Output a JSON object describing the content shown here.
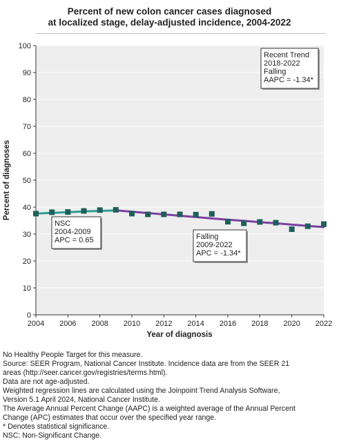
{
  "chart_data": {
    "type": "line",
    "title": "Percent of new colon cancer cases diagnosed at localized stage, delay-adjusted incidence, 2004-2022",
    "title_lines": [
      "Percent of new colon cancer cases diagnosed",
      "at localized stage, delay-adjusted incidence, 2004-2022"
    ],
    "xlabel": "Year of diagnosis",
    "ylabel": "Percent of diagnoses",
    "xlim": [
      2004,
      2022
    ],
    "ylim": [
      0,
      100
    ],
    "x_ticks": [
      2004,
      2006,
      2008,
      2010,
      2012,
      2014,
      2016,
      2018,
      2020,
      2022
    ],
    "y_ticks": [
      0,
      10,
      20,
      30,
      40,
      50,
      60,
      70,
      80,
      90,
      100
    ],
    "grid": true,
    "series": [
      {
        "kind": "observed",
        "marker": "square",
        "color": "#1f5f5b",
        "x": [
          2004,
          2005,
          2006,
          2007,
          2008,
          2009,
          2010,
          2011,
          2012,
          2013,
          2014,
          2015,
          2016,
          2017,
          2018,
          2019,
          2020,
          2021,
          2022
        ],
        "values": [
          37.6,
          38.1,
          38.2,
          38.6,
          38.9,
          39.0,
          37.6,
          37.3,
          37.3,
          37.3,
          37.2,
          37.5,
          34.6,
          34.0,
          34.5,
          34.2,
          31.8,
          32.9,
          33.7
        ]
      },
      {
        "kind": "trend",
        "segment": "2004-2009",
        "color": "#2a9d8f",
        "x": [
          2004,
          2005,
          2006,
          2007,
          2008,
          2009
        ],
        "values": [
          37.6,
          37.9,
          38.1,
          38.4,
          38.6,
          38.8
        ]
      },
      {
        "kind": "trend",
        "segment": "2009-2022",
        "color": "#7b3fa0",
        "x": [
          2009,
          2010,
          2011,
          2012,
          2013,
          2014,
          2015,
          2016,
          2017,
          2018,
          2019,
          2020,
          2021,
          2022
        ],
        "values": [
          38.8,
          38.3,
          37.8,
          37.3,
          36.8,
          36.3,
          35.8,
          35.3,
          34.9,
          34.4,
          34.0,
          33.5,
          33.0,
          32.6
        ]
      }
    ],
    "annotations": [
      {
        "id": "nsc",
        "lines": [
          "NSC",
          "2004-2009",
          "APC =  0.65"
        ]
      },
      {
        "id": "falling",
        "lines": [
          "Falling",
          "2009-2022",
          "APC = -1.34*"
        ]
      },
      {
        "id": "recent",
        "lines": [
          "Recent Trend",
          "2018-2022",
          "Falling",
          "AAPC = -1.34*"
        ]
      }
    ]
  },
  "footnotes": [
    "No Healthy People Target for this measure.",
    "Source: SEER Program, National Cancer Institute. Incidence data are from the SEER 21",
    "areas (http://seer.cancer.gov/registries/terms.html).",
    "Data are not age-adjusted.",
    "Weighted regression lines are calculated using the Joinpoint Trend Analysis Software,",
    "Version 5.1 April 2024, National Cancer Institute.",
    "The Average Annual Percent Change (AAPC) is a weighted average of the Annual Percent",
    "Change (APC) estimates that occur over the specified year range.",
    "* Denotes statistical significance.",
    "NSC: Non-Significant Change."
  ]
}
